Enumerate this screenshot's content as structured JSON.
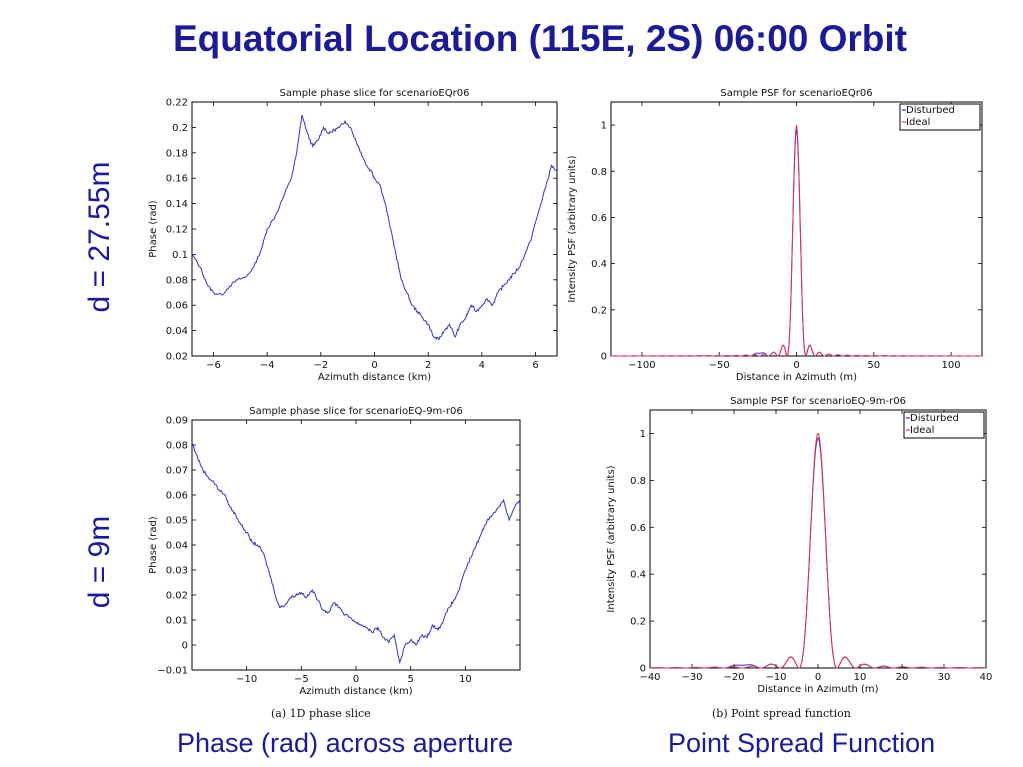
{
  "slide": {
    "title": "Equatorial Location (115E, 2S) 06:00 Orbit",
    "row1_label": "d  = 27.55m",
    "row2_label": "d  = 9m",
    "caption_a": "(a) 1D phase slice",
    "caption_b": "(b) Point spread function",
    "bottom_left": "Phase (rad) across aperture",
    "bottom_right": "Point Spread Function"
  },
  "colors": {
    "title": "#1a1a9a",
    "disturbed": "#3333cc",
    "ideal": "#e0305a"
  },
  "chart_data": [
    {
      "id": "phase1",
      "type": "line",
      "title": "Sample phase slice for scenarioEQr06",
      "xlabel": "Azimuth distance (km)",
      "ylabel": "Phase (rad)",
      "xlim": [
        -6.8,
        6.8
      ],
      "ylim": [
        0.02,
        0.22
      ],
      "xticks": [
        -6,
        -4,
        -2,
        0,
        2,
        4,
        6
      ],
      "yticks": [
        0.02,
        0.04,
        0.06,
        0.08,
        0.1,
        0.12,
        0.14,
        0.16,
        0.18,
        0.2,
        0.22
      ],
      "series": [
        {
          "x": [
            -6.8,
            -6.5,
            -6.2,
            -6.0,
            -5.7,
            -5.4,
            -5.1,
            -4.8,
            -4.5,
            -4.2,
            -4.0,
            -3.7,
            -3.4,
            -3.1,
            -2.9,
            -2.7,
            -2.5,
            -2.3,
            -2.1,
            -1.9,
            -1.7,
            -1.5,
            -1.3,
            -1.1,
            -0.9,
            -0.7,
            -0.5,
            -0.3,
            -0.1,
            0.0,
            0.2,
            0.4,
            0.6,
            0.8,
            1.0,
            1.2,
            1.4,
            1.6,
            1.8,
            2.0,
            2.2,
            2.4,
            2.6,
            2.8,
            3.0,
            3.2,
            3.4,
            3.6,
            3.8,
            4.0,
            4.2,
            4.4,
            4.6,
            4.8,
            5.0,
            5.2,
            5.4,
            5.6,
            5.8,
            6.0,
            6.2,
            6.4,
            6.6,
            6.8
          ],
          "y": [
            0.1,
            0.09,
            0.075,
            0.07,
            0.068,
            0.075,
            0.08,
            0.082,
            0.09,
            0.105,
            0.12,
            0.13,
            0.145,
            0.16,
            0.18,
            0.21,
            0.195,
            0.185,
            0.19,
            0.2,
            0.195,
            0.198,
            0.2,
            0.205,
            0.2,
            0.19,
            0.18,
            0.17,
            0.165,
            0.16,
            0.155,
            0.14,
            0.12,
            0.1,
            0.08,
            0.07,
            0.06,
            0.055,
            0.05,
            0.045,
            0.035,
            0.033,
            0.04,
            0.045,
            0.035,
            0.045,
            0.05,
            0.06,
            0.055,
            0.06,
            0.065,
            0.06,
            0.07,
            0.075,
            0.08,
            0.085,
            0.09,
            0.1,
            0.11,
            0.125,
            0.14,
            0.155,
            0.17,
            0.165
          ]
        }
      ]
    },
    {
      "id": "psf1",
      "type": "line",
      "title": "Sample PSF for scenarioEQr06",
      "xlabel": "Distance in Azimuth (m)",
      "ylabel": "Intensity PSF (arbitrary units)",
      "xlim": [
        -120,
        120
      ],
      "ylim": [
        0,
        1.1
      ],
      "xticks": [
        -100,
        -50,
        0,
        50,
        100
      ],
      "yticks": [
        0,
        0.2,
        0.4,
        0.6,
        0.8,
        1
      ],
      "legend": [
        "Disturbed",
        "Ideal"
      ],
      "legend_position": "top-right",
      "peak_x": 0,
      "peak_y": 1,
      "mainlobe_halfwidth": 6
    },
    {
      "id": "phase2",
      "type": "line",
      "title": "Sample phase slice for scenarioEQ-9m-r06",
      "xlabel": "Azimuth distance (km)",
      "ylabel": "Phase (rad)",
      "xlim": [
        -15,
        15
      ],
      "ylim": [
        -0.01,
        0.09
      ],
      "xticks": [
        -10,
        -5,
        0,
        5,
        10
      ],
      "yticks": [
        -0.01,
        0,
        0.01,
        0.02,
        0.03,
        0.04,
        0.05,
        0.06,
        0.07,
        0.08,
        0.09
      ],
      "series": [
        {
          "x": [
            -15,
            -14.5,
            -14,
            -13.5,
            -13,
            -12.5,
            -12,
            -11.5,
            -11,
            -10.5,
            -10,
            -9.5,
            -9,
            -8.5,
            -8,
            -7.5,
            -7,
            -6.5,
            -6,
            -5.5,
            -5,
            -4.5,
            -4,
            -3.5,
            -3,
            -2.5,
            -2,
            -1.5,
            -1,
            -0.5,
            0,
            0.5,
            1,
            1.5,
            2,
            2.5,
            3,
            3.5,
            4,
            4.5,
            5,
            5.5,
            6,
            6.5,
            7,
            7.5,
            8,
            8.5,
            9,
            9.5,
            10,
            10.5,
            11,
            11.5,
            12,
            12.5,
            13,
            13.5,
            14,
            14.5,
            15
          ],
          "y": [
            0.081,
            0.075,
            0.07,
            0.067,
            0.065,
            0.062,
            0.06,
            0.055,
            0.052,
            0.048,
            0.045,
            0.041,
            0.04,
            0.037,
            0.03,
            0.022,
            0.015,
            0.016,
            0.019,
            0.02,
            0.021,
            0.019,
            0.022,
            0.018,
            0.014,
            0.013,
            0.017,
            0.015,
            0.012,
            0.011,
            0.009,
            0.008,
            0.007,
            0.005,
            0.007,
            0.003,
            0.001,
            0.004,
            -0.007,
            0.0,
            0.002,
            0.0,
            0.004,
            0.003,
            0.008,
            0.006,
            0.01,
            0.015,
            0.018,
            0.023,
            0.03,
            0.035,
            0.04,
            0.045,
            0.05,
            0.052,
            0.055,
            0.058,
            0.05,
            0.055,
            0.058
          ]
        }
      ]
    },
    {
      "id": "psf2",
      "type": "line",
      "title": "Sample PSF for scenarioEQ-9m-r06",
      "xlabel": "Distance in Azimuth (m)",
      "ylabel": "Intensity PSF (arbitrary units)",
      "xlim": [
        -40,
        40
      ],
      "ylim": [
        0,
        1.1
      ],
      "xticks": [
        -40,
        -30,
        -20,
        -10,
        0,
        10,
        20,
        30,
        40
      ],
      "yticks": [
        0,
        0.2,
        0.4,
        0.6,
        0.8,
        1
      ],
      "legend": [
        "Disturbed",
        "Ideal"
      ],
      "legend_position": "top-right",
      "peak_x": 0,
      "peak_y": 1,
      "mainlobe_halfwidth": 4.5
    }
  ]
}
